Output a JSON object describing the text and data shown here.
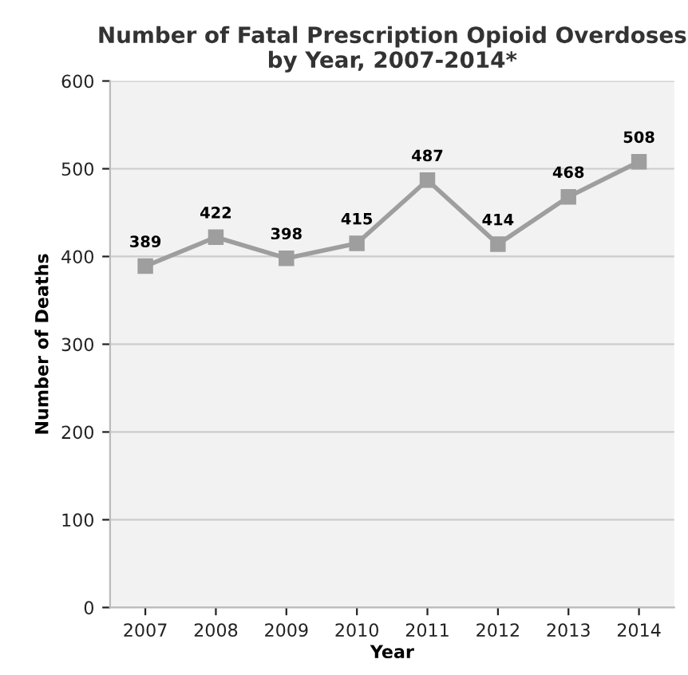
{
  "chart_data": {
    "type": "line",
    "title": "Number of Fatal Prescription Opioid Overdoses\nby Year, 2007-2014*",
    "xlabel": "Year",
    "ylabel": "Number of Deaths",
    "categories": [
      "2007",
      "2008",
      "2009",
      "2010",
      "2011",
      "2012",
      "2013",
      "2014"
    ],
    "series": [
      {
        "color": "#9e9e9e",
        "values": [
          389,
          422,
          398,
          415,
          487,
          414,
          468,
          508
        ]
      }
    ],
    "ylim": [
      0,
      600
    ],
    "yticks": [
      0,
      100,
      200,
      300,
      400,
      500,
      600
    ],
    "grid": "y",
    "marker": "square",
    "line_style": "solid",
    "data_labels": true
  }
}
